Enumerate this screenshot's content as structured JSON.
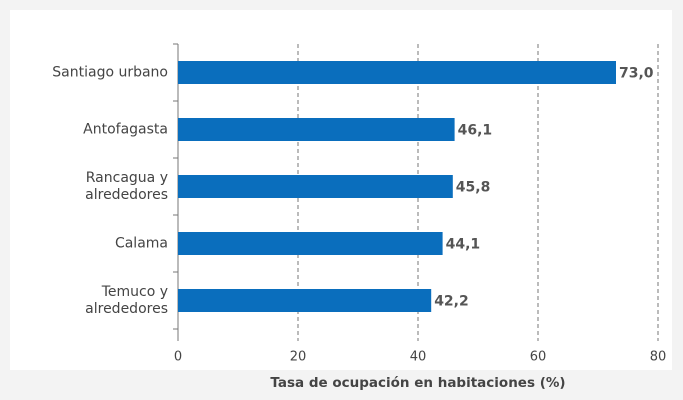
{
  "chart_data": {
    "type": "bar",
    "orientation": "horizontal",
    "x_label": "Tasa de ocupación en habitaciones (%)",
    "categories": [
      "Santiago urbano",
      "Antofagasta",
      "Rancagua y alrededores",
      "Calama",
      "Temuco y alrededores"
    ],
    "values": [
      73.0,
      46.1,
      45.8,
      44.1,
      42.2
    ],
    "value_labels": [
      "73,0",
      "46,1",
      "45,8",
      "44,1",
      "42,2"
    ],
    "color": "#0a6ebd",
    "xlim": [
      0,
      80
    ],
    "xticks": [
      0,
      20,
      40,
      60,
      80
    ],
    "grid": true
  }
}
